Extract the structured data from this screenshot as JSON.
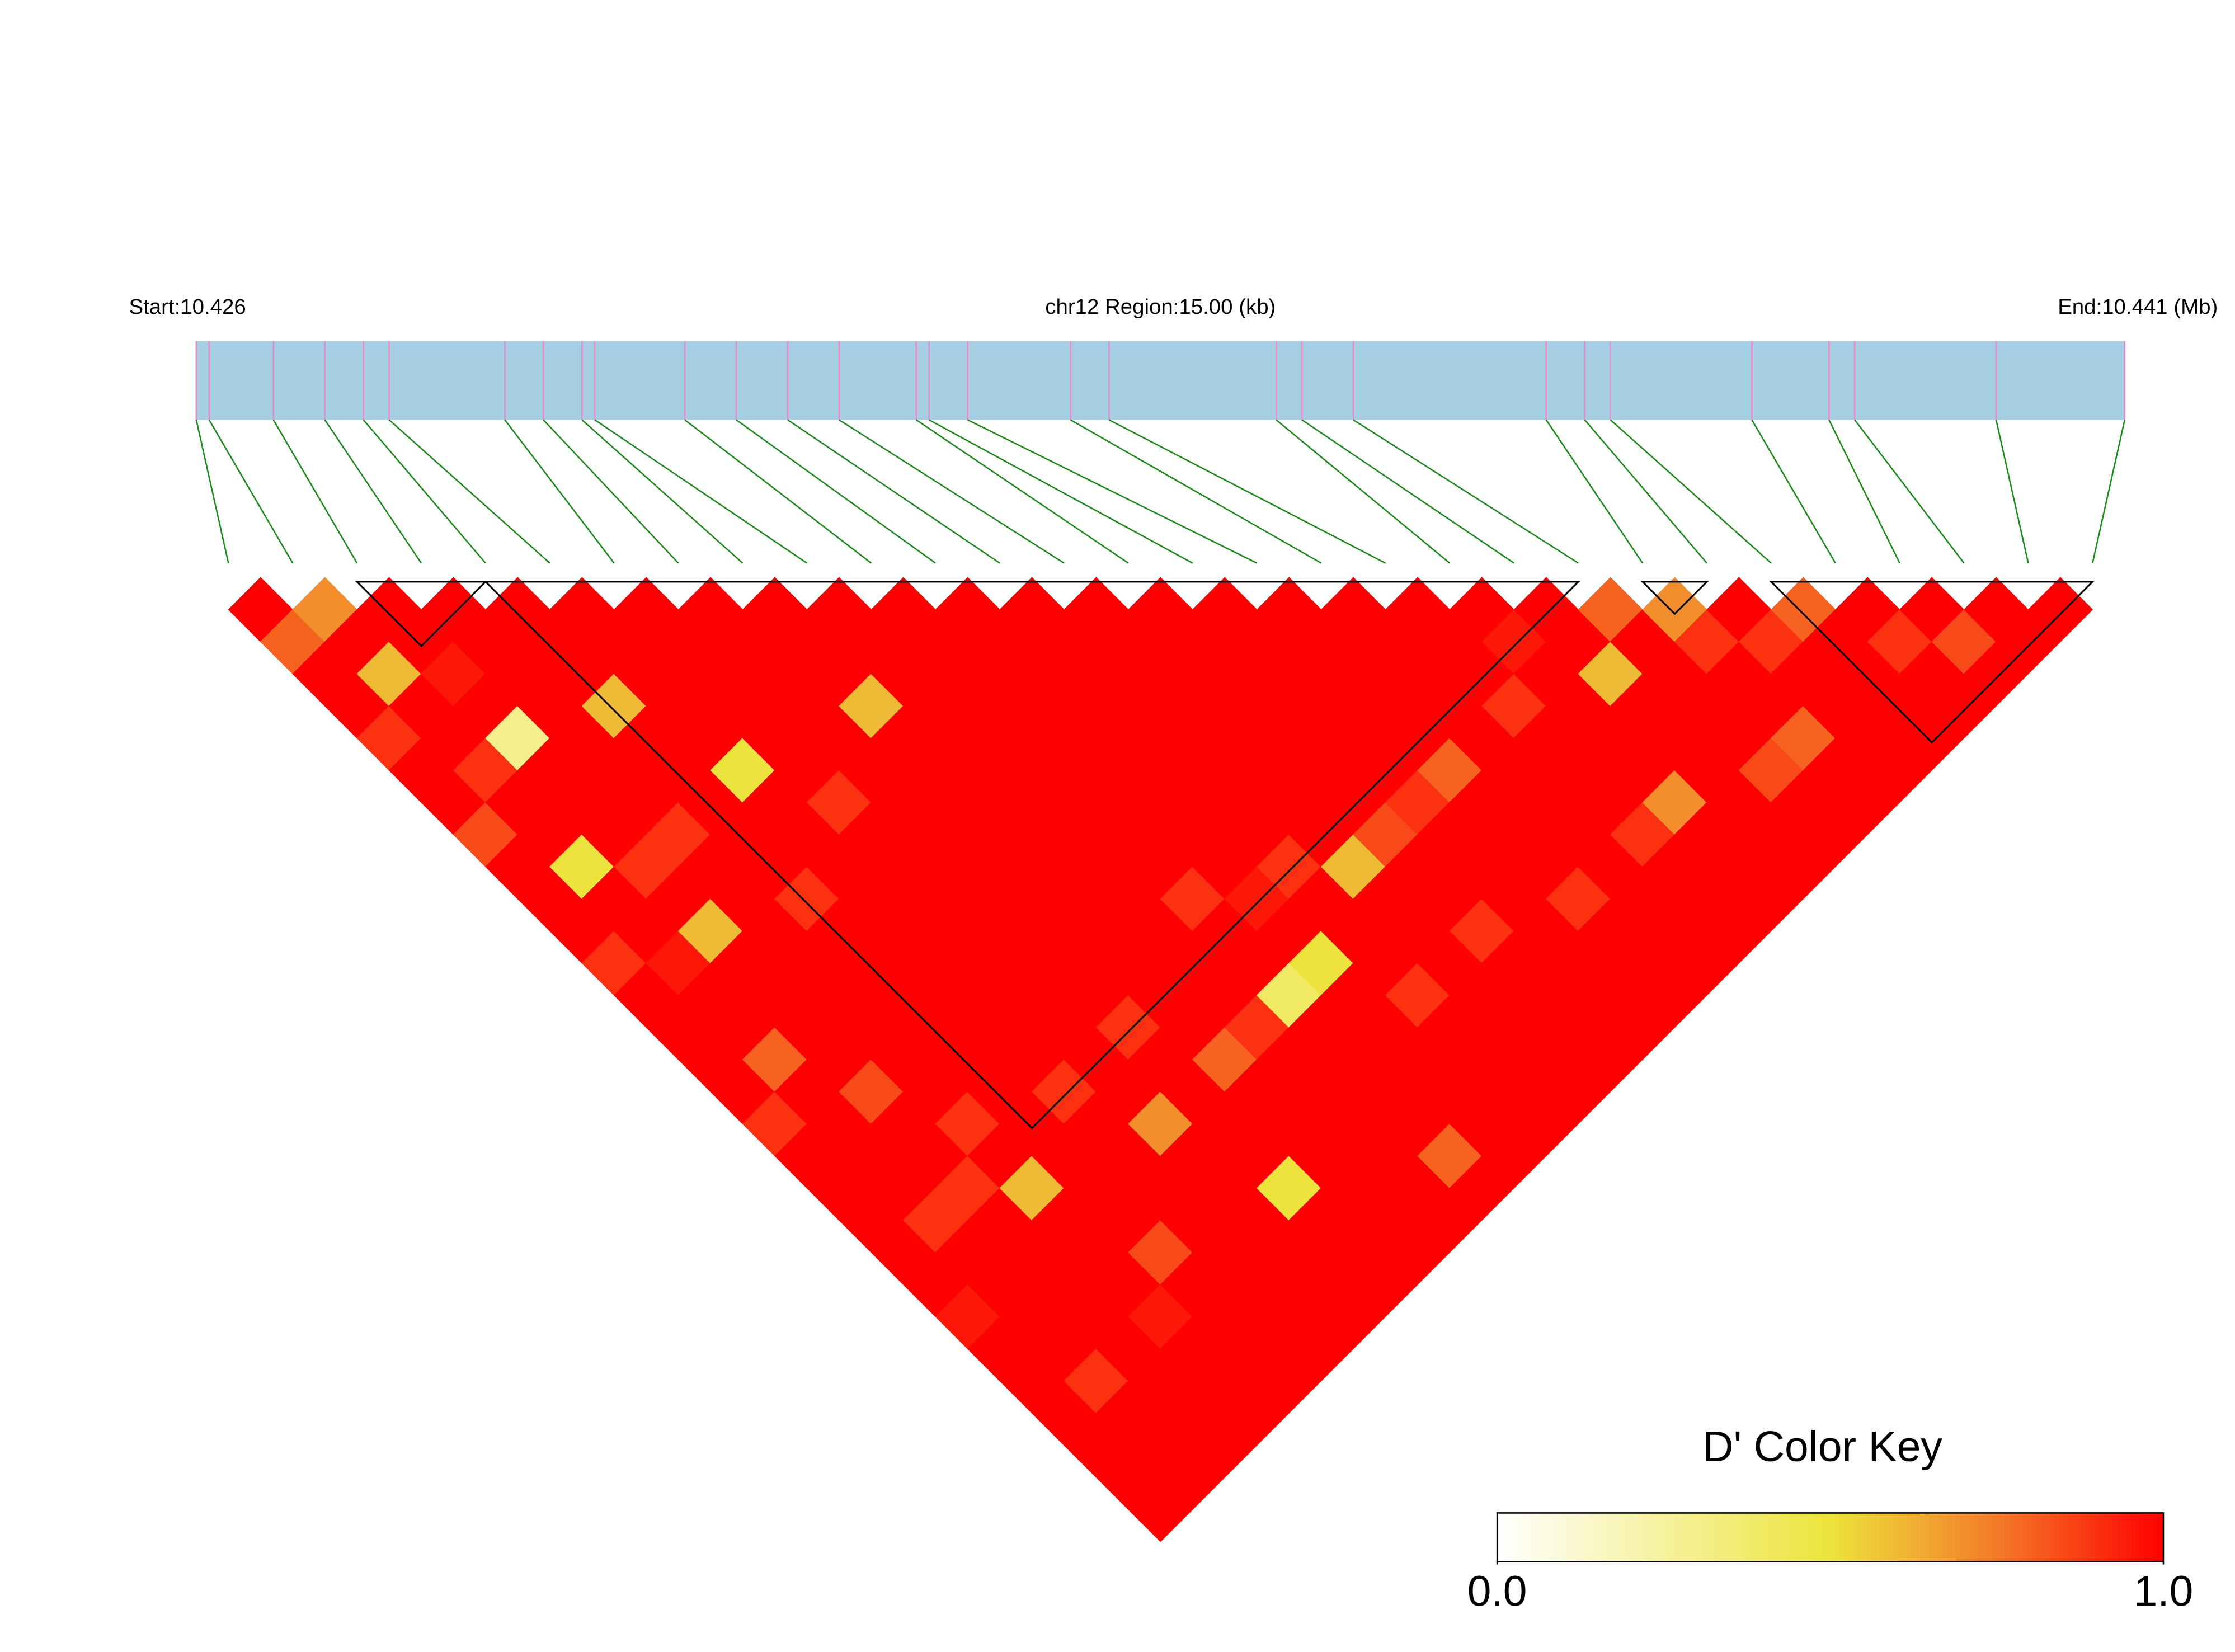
{
  "chart_data": {
    "type": "ld_heatmap",
    "start_label": "Start:10.426",
    "region_label": "chr12 Region:15.00 (kb)",
    "end_label": "End:10.441 (Mb)",
    "xlim": [
      0,
      15
    ],
    "snp_positions": [
      0,
      0.1,
      0.6,
      1.0,
      1.3,
      1.5,
      2.4,
      2.7,
      3.0,
      3.1,
      3.8,
      4.2,
      4.6,
      5.0,
      5.6,
      5.7,
      6.0,
      6.8,
      7.1,
      8.4,
      8.6,
      9.0,
      10.5,
      10.8,
      11.0,
      12.1,
      12.7,
      12.9,
      14.0,
      15.0
    ],
    "ld_matrix": [
      [
        1,
        0.8,
        1,
        1,
        0.9,
        1,
        1,
        0.85,
        1,
        1,
        1,
        0.9,
        1,
        1,
        1,
        1,
        0.9,
        1,
        1,
        1,
        1,
        1,
        0.95,
        1,
        1,
        1,
        1,
        1,
        1
      ],
      [
        0.7,
        1,
        0.6,
        1,
        1,
        0.9,
        1,
        1,
        0.5,
        1,
        1,
        0.95,
        1,
        1,
        0.8,
        1,
        1,
        1,
        1,
        0.9,
        1,
        1,
        1,
        1,
        0.9,
        1,
        1,
        1
      ],
      [
        1,
        1,
        0.95,
        1,
        0.3,
        1,
        1,
        1,
        0.9,
        1,
        0.6,
        1,
        1,
        1,
        1,
        0.85,
        1,
        1,
        0.9,
        1,
        1,
        1,
        1,
        1,
        1,
        1,
        1
      ],
      [
        1,
        1,
        1,
        1,
        1,
        1,
        1,
        0.9,
        1,
        1,
        1,
        1,
        1,
        1,
        1,
        1,
        0.9,
        1,
        0.6,
        1,
        1,
        1,
        0.95,
        1,
        1,
        1
      ],
      [
        1,
        1,
        1,
        0.6,
        1,
        1,
        1,
        1,
        1,
        0.9,
        1,
        1,
        1,
        1,
        1,
        1,
        1,
        1,
        1,
        1,
        0.85,
        1,
        1,
        1,
        1
      ],
      [
        1,
        1,
        1,
        1,
        1,
        0.5,
        1,
        1,
        1,
        1,
        1,
        1,
        1,
        1,
        1,
        0.9,
        1,
        1,
        1,
        1,
        1,
        1,
        1,
        1
      ],
      [
        1,
        1,
        1,
        1,
        1,
        1,
        0.9,
        1,
        1,
        1,
        1,
        1,
        1,
        1,
        1,
        1,
        0.7,
        1,
        1,
        1,
        1,
        1,
        1
      ],
      [
        1,
        1,
        1,
        1,
        1,
        1,
        1,
        1,
        1,
        1,
        1,
        1,
        1,
        0.9,
        1,
        1,
        1,
        1,
        0.5,
        1,
        1,
        1
      ],
      [
        1,
        1,
        1,
        0.6,
        1,
        1,
        1,
        1,
        1,
        1,
        1,
        1,
        1,
        1,
        0.8,
        1,
        1,
        1,
        1,
        1,
        1
      ],
      [
        1,
        1,
        1,
        1,
        1,
        1,
        1,
        1,
        1,
        1,
        1,
        1,
        1,
        0.9,
        1,
        1,
        1,
        1,
        1,
        1
      ],
      [
        1,
        1,
        1,
        1,
        1,
        1,
        1,
        1,
        1,
        0.9,
        1,
        1,
        0.4,
        1,
        1,
        1,
        1,
        0.8,
        1
      ],
      [
        1,
        1,
        1,
        1,
        1,
        1,
        1,
        1,
        1,
        0.95,
        1,
        0.5,
        1,
        1,
        1,
        1,
        1,
        1
      ],
      [
        1,
        1,
        1,
        1,
        1,
        1,
        1,
        1,
        0.9,
        1,
        1,
        1,
        0.9,
        1,
        1,
        1,
        1
      ],
      [
        1,
        1,
        1,
        1,
        1,
        1,
        1,
        1,
        0.6,
        1,
        1,
        1,
        1,
        1,
        1,
        1
      ],
      [
        1,
        1,
        1,
        1,
        1,
        1,
        1,
        0.85,
        1,
        1,
        0.9,
        1,
        1,
        1,
        1
      ],
      [
        1,
        1,
        1,
        1,
        1,
        1,
        0.9,
        1,
        1,
        1,
        1,
        1,
        1,
        1
      ],
      [
        1,
        1,
        1,
        1,
        1,
        0.8,
        1,
        1,
        1,
        0.9,
        1,
        1,
        1
      ],
      [
        1,
        1,
        1,
        1,
        1,
        1,
        1,
        1,
        1,
        1,
        1,
        1
      ],
      [
        1,
        1,
        1,
        0.9,
        1,
        1,
        1,
        0.9,
        1,
        1,
        1
      ],
      [
        1,
        0.95,
        1,
        1,
        1,
        1,
        0.7,
        1,
        1,
        1
      ],
      [
        1,
        1,
        0.6,
        1,
        1,
        1,
        1,
        1,
        1
      ],
      [
        0.8,
        1,
        1,
        1,
        1,
        0.85,
        1,
        1
      ],
      [
        0.7,
        0.9,
        1,
        1,
        0.8,
        1,
        1
      ],
      [
        1,
        0.9,
        1,
        1,
        1,
        1
      ],
      [
        0.8,
        1,
        1,
        1,
        1
      ],
      [
        1,
        0.9,
        1,
        1
      ],
      [
        1,
        0.85,
        1
      ],
      [
        1,
        1
      ],
      [
        1
      ]
    ],
    "blocks": [
      [
        2,
        4
      ],
      [
        4,
        21
      ],
      [
        22,
        23
      ],
      [
        24,
        29
      ]
    ],
    "colorscale": [
      [
        0,
        "#ffffff"
      ],
      [
        0.5,
        "#ece43c"
      ],
      [
        0.75,
        "#f47a28"
      ],
      [
        1,
        "#ff0000"
      ]
    ],
    "colorbar_title": "D' Color Key",
    "colorbar_lim": [
      0,
      1
    ],
    "colorbar_ticks": [
      {
        "value": 0,
        "label": "0.0"
      },
      {
        "value": 1,
        "label": "1.0"
      }
    ],
    "region_color": "#a6cee3",
    "snp_line_color": "#e88ac6",
    "connector_color": "#1a8a1a"
  }
}
